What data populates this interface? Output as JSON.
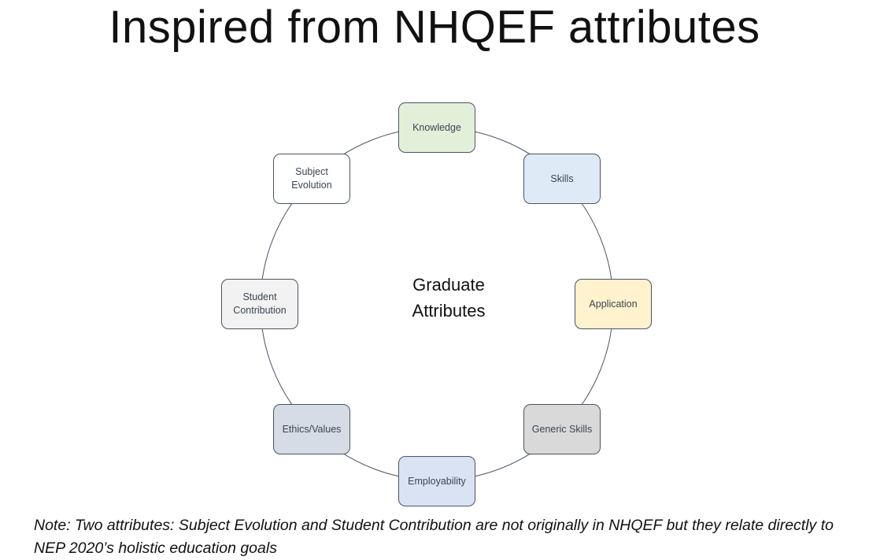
{
  "title": "Inspired from NHQEF attributes",
  "diagram": {
    "center_label": "Graduate\nAttributes",
    "ring_color": "#4a5564",
    "nodes": [
      {
        "label": "Knowledge",
        "fill": "#e2f0d9"
      },
      {
        "label": "Skills",
        "fill": "#deebf7"
      },
      {
        "label": "Application",
        "fill": "#fff2cc"
      },
      {
        "label": "Generic Skills",
        "fill": "#d9d9d9"
      },
      {
        "label": "Employability",
        "fill": "#dae3f3"
      },
      {
        "label": "Ethics/Values",
        "fill": "#d6dce5"
      },
      {
        "label": "Student\nContribution",
        "fill": "#f2f2f2"
      },
      {
        "label": "Subject\nEvolution",
        "fill": "#ffffff"
      }
    ]
  },
  "note": "Note: Two attributes: Subject Evolution and Student Contribution are not originally in NHQEF but they relate directly to NEP 2020’s holistic education goals"
}
